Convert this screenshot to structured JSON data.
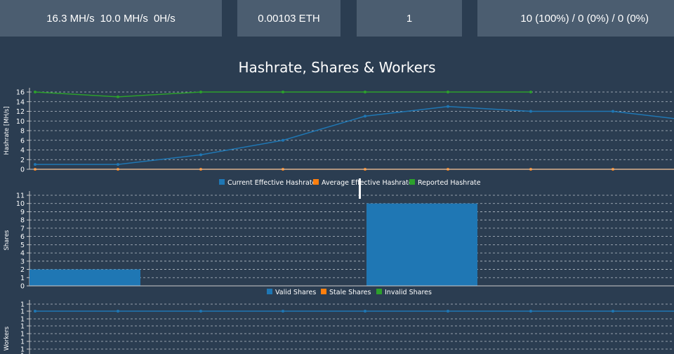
{
  "stats": {
    "current_hashrate": "16.3 MH/s",
    "average_hashrate": "10.0 MH/s",
    "reported_hashrate": "0H/s",
    "unpaid_balance": "0.00103 ETH",
    "active_workers": "1",
    "shares": "10 (100%) / 0 (0%) / 0 (0%)"
  },
  "colors": {
    "blue": "#1f77b4",
    "orange": "#ff7f0e",
    "green": "#2ca02c",
    "background": "#2b3d51",
    "card": "#4b5d70"
  },
  "chart_data": [
    {
      "type": "line",
      "title": "Hashrate, Shares & Workers",
      "ylabel": "Hashrate [MH/s]",
      "ylim": [
        0,
        16
      ],
      "yticks": [
        0,
        2,
        4,
        6,
        8,
        10,
        12,
        14,
        16
      ],
      "grid": true,
      "legend_position": "bottom-center",
      "x": [
        0,
        1,
        2,
        3,
        4,
        5,
        6,
        7,
        8
      ],
      "series": [
        {
          "name": "Current Effective Hashrate",
          "color": "#1f77b4",
          "values": [
            1,
            1,
            3,
            6,
            11,
            13,
            12,
            12,
            10.5
          ]
        },
        {
          "name": "Average Effective Hashrate",
          "color": "#ff7f0e",
          "values": [
            0,
            0,
            0,
            0,
            0,
            0,
            0,
            0,
            0
          ]
        },
        {
          "name": "Reported Hashrate",
          "color": "#2ca02c",
          "values": [
            16,
            15,
            16,
            16,
            16,
            16,
            16,
            null,
            null
          ]
        }
      ]
    },
    {
      "type": "bar",
      "ylabel": "Shares",
      "ylim": [
        0,
        11
      ],
      "yticks": [
        0,
        1,
        2,
        3,
        4,
        5,
        6,
        7,
        8,
        9,
        10,
        11
      ],
      "grid": true,
      "legend_position": "bottom-center",
      "x": [
        0,
        1,
        2,
        3,
        4,
        5,
        6,
        7,
        8
      ],
      "series": [
        {
          "name": "Valid Shares",
          "color": "#1f77b4",
          "values": [
            2,
            0,
            0,
            0,
            10,
            0,
            0,
            0,
            0
          ]
        },
        {
          "name": "Stale Shares",
          "color": "#ff7f0e",
          "values": [
            0,
            0,
            0,
            0,
            0,
            0,
            0,
            0,
            0
          ]
        },
        {
          "name": "Invalid Shares",
          "color": "#2ca02c",
          "values": [
            0,
            0,
            0,
            0,
            0,
            0,
            0,
            0,
            0
          ]
        }
      ]
    },
    {
      "type": "line",
      "ylabel": "Workers",
      "yticks": [
        "1",
        "1",
        "1",
        "1",
        "1",
        "1",
        "1",
        "1"
      ],
      "grid": true,
      "x": [
        0,
        1,
        2,
        3,
        4,
        5,
        6,
        7,
        8
      ],
      "series": [
        {
          "name": "Workers",
          "color": "#1f77b4",
          "values": [
            1,
            1,
            1,
            1,
            1,
            1,
            1,
            1,
            1
          ]
        }
      ]
    }
  ]
}
